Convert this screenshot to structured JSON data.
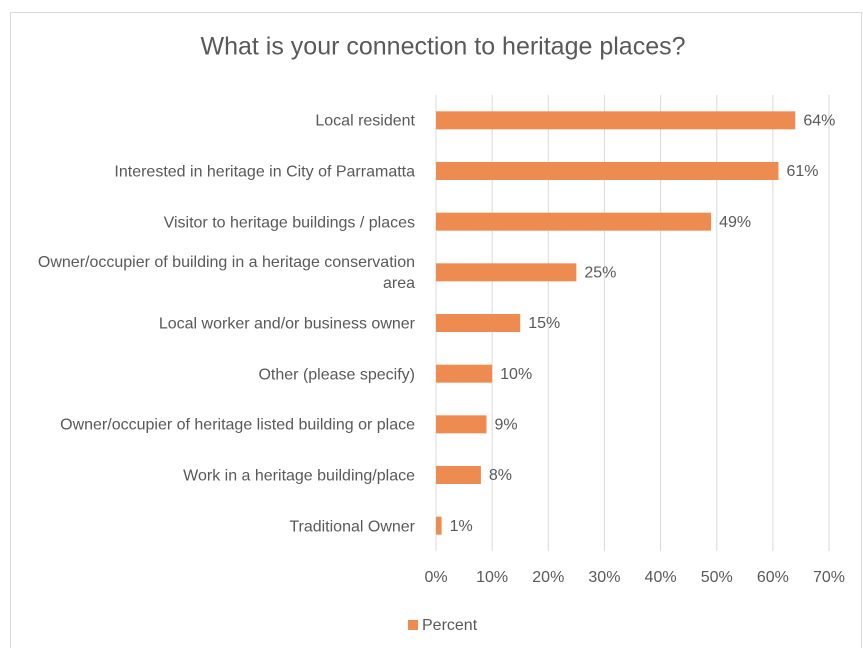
{
  "chart_data": {
    "type": "bar",
    "orientation": "horizontal",
    "title": "What is your connection to heritage places?",
    "categories": [
      "Local resident",
      "Interested in heritage in City of Parramatta",
      "Visitor to heritage buildings / places",
      "Owner/occupier of building in a heritage conservation area",
      "Local worker and/or business owner",
      "Other (please specify)",
      "Owner/occupier of heritage listed building or place",
      "Work in a heritage building/place",
      "Traditional Owner"
    ],
    "series": [
      {
        "name": "Percent",
        "color": "#ed8b50",
        "values": [
          64,
          61,
          49,
          25,
          15,
          10,
          9,
          8,
          1
        ],
        "value_labels": [
          "64%",
          "61%",
          "49%",
          "25%",
          "15%",
          "10%",
          "9%",
          "8%",
          "1%"
        ]
      }
    ],
    "xlim": [
      0,
      70
    ],
    "xticks": [
      {
        "value": 0,
        "label": "0%"
      },
      {
        "value": 10,
        "label": "10%"
      },
      {
        "value": 20,
        "label": "20%"
      },
      {
        "value": 30,
        "label": "30%"
      },
      {
        "value": 40,
        "label": "40%"
      },
      {
        "value": 50,
        "label": "50%"
      },
      {
        "value": 60,
        "label": "60%"
      },
      {
        "value": 70,
        "label": "70%"
      }
    ],
    "grid": true,
    "legend": "bottom"
  }
}
